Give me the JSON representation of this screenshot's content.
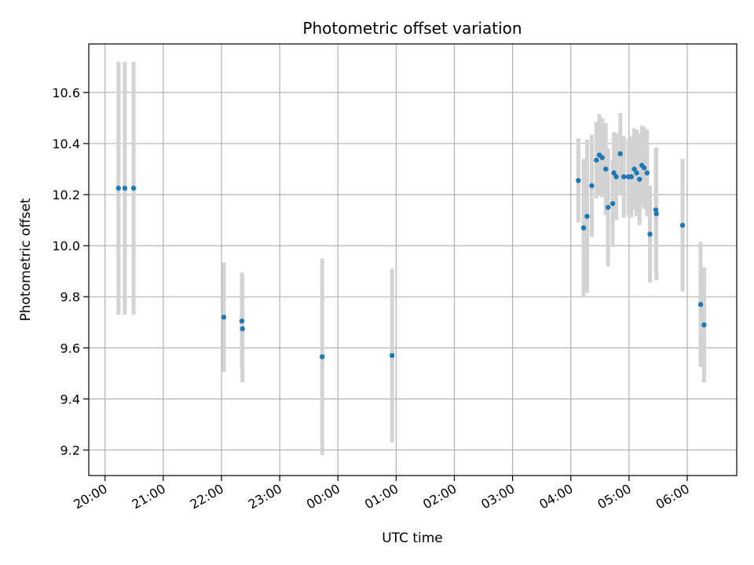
{
  "chart_data": {
    "type": "scatter",
    "title": "Photometric offset variation",
    "xlabel": "UTC time",
    "ylabel": "Photometric offset",
    "x_unit": "hours after 20:00 UTC",
    "xlim": [
      -0.28,
      10.85
    ],
    "ylim": [
      9.1,
      10.79
    ],
    "xticks": [
      {
        "value": 0,
        "label": "20:00"
      },
      {
        "value": 1,
        "label": "21:00"
      },
      {
        "value": 2,
        "label": "22:00"
      },
      {
        "value": 3,
        "label": "23:00"
      },
      {
        "value": 4,
        "label": "00:00"
      },
      {
        "value": 5,
        "label": "01:00"
      },
      {
        "value": 6,
        "label": "02:00"
      },
      {
        "value": 7,
        "label": "03:00"
      },
      {
        "value": 8,
        "label": "04:00"
      },
      {
        "value": 9,
        "label": "05:00"
      },
      {
        "value": 10,
        "label": "06:00"
      }
    ],
    "yticks": [
      {
        "value": 9.2,
        "label": "9.2"
      },
      {
        "value": 9.4,
        "label": "9.4"
      },
      {
        "value": 9.6,
        "label": "9.6"
      },
      {
        "value": 9.8,
        "label": "9.8"
      },
      {
        "value": 10.0,
        "label": "10.0"
      },
      {
        "value": 10.2,
        "label": "10.2"
      },
      {
        "value": 10.4,
        "label": "10.4"
      },
      {
        "value": 10.6,
        "label": "10.6"
      }
    ],
    "grid": true,
    "marker_color": "#1f77b4",
    "errorbar_color": "#d3d3d3",
    "points": [
      {
        "x": 0.23,
        "y": 10.225,
        "err": 0.495
      },
      {
        "x": 0.34,
        "y": 10.225,
        "err": 0.495
      },
      {
        "x": 0.49,
        "y": 10.225,
        "err": 0.495
      },
      {
        "x": 2.04,
        "y": 9.72,
        "err": 0.215
      },
      {
        "x": 2.35,
        "y": 9.705,
        "err": 0.19
      },
      {
        "x": 2.36,
        "y": 9.675,
        "err": 0.21
      },
      {
        "x": 3.73,
        "y": 9.565,
        "err": 0.385
      },
      {
        "x": 4.93,
        "y": 9.57,
        "err": 0.34
      },
      {
        "x": 8.13,
        "y": 10.255,
        "err": 0.165
      },
      {
        "x": 8.22,
        "y": 10.07,
        "err": 0.27
      },
      {
        "x": 8.28,
        "y": 10.115,
        "err": 0.3
      },
      {
        "x": 8.36,
        "y": 10.235,
        "err": 0.2
      },
      {
        "x": 8.44,
        "y": 10.335,
        "err": 0.15
      },
      {
        "x": 8.49,
        "y": 10.355,
        "err": 0.16
      },
      {
        "x": 8.54,
        "y": 10.345,
        "err": 0.155
      },
      {
        "x": 8.6,
        "y": 10.3,
        "err": 0.18
      },
      {
        "x": 8.64,
        "y": 10.15,
        "err": 0.23
      },
      {
        "x": 8.72,
        "y": 10.165,
        "err": 0.17
      },
      {
        "x": 8.74,
        "y": 10.285,
        "err": 0.16
      },
      {
        "x": 8.78,
        "y": 10.27,
        "err": 0.17
      },
      {
        "x": 8.85,
        "y": 10.36,
        "err": 0.16
      },
      {
        "x": 8.91,
        "y": 10.27,
        "err": 0.16
      },
      {
        "x": 8.99,
        "y": 10.27,
        "err": 0.15
      },
      {
        "x": 9.04,
        "y": 10.27,
        "err": 0.16
      },
      {
        "x": 9.09,
        "y": 10.3,
        "err": 0.16
      },
      {
        "x": 9.13,
        "y": 10.285,
        "err": 0.17
      },
      {
        "x": 9.18,
        "y": 10.26,
        "err": 0.18
      },
      {
        "x": 9.22,
        "y": 10.315,
        "err": 0.155
      },
      {
        "x": 9.26,
        "y": 10.305,
        "err": 0.16
      },
      {
        "x": 9.31,
        "y": 10.285,
        "err": 0.17
      },
      {
        "x": 9.36,
        "y": 10.045,
        "err": 0.19
      },
      {
        "x": 9.46,
        "y": 10.14,
        "err": 0.24
      },
      {
        "x": 9.47,
        "y": 10.125,
        "err": 0.26
      },
      {
        "x": 9.92,
        "y": 10.08,
        "err": 0.26
      },
      {
        "x": 10.23,
        "y": 9.77,
        "err": 0.245
      },
      {
        "x": 10.29,
        "y": 9.69,
        "err": 0.225
      }
    ]
  }
}
